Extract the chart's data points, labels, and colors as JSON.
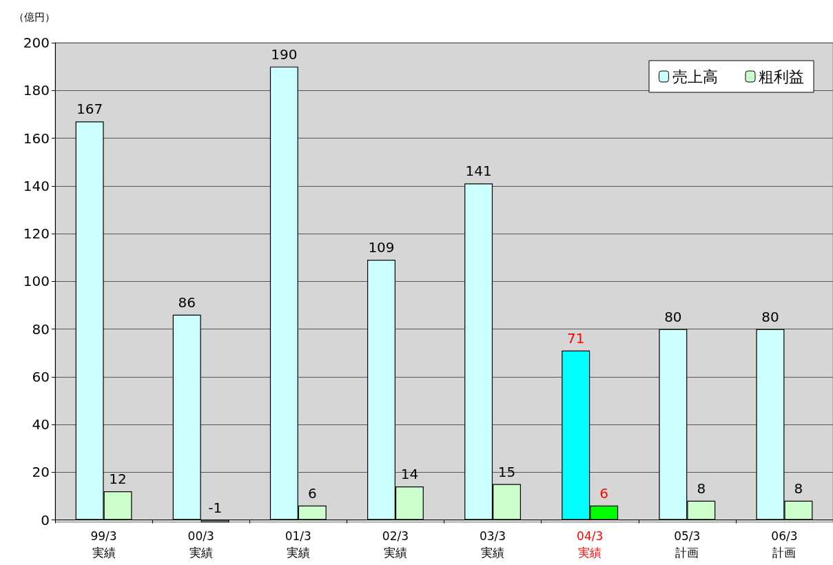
{
  "chart_data": {
    "type": "bar",
    "ylabel": "（億円）",
    "categories": [
      "99/3\n実績",
      "00/3\n実績",
      "01/3\n実績",
      "02/3\n実績",
      "03/3\n実績",
      "04/3\n実績",
      "05/3\n計画",
      "06/3\n計画"
    ],
    "series": [
      {
        "name": "売上高",
        "color": "#ccffff",
        "colors": [
          "#ccffff",
          "#ccffff",
          "#ccffff",
          "#ccffff",
          "#ccffff",
          "#00ffff",
          "#ccffff",
          "#ccffff"
        ],
        "values": [
          167,
          86,
          190,
          109,
          141,
          71,
          80,
          80
        ]
      },
      {
        "name": "粗利益",
        "color": "#ccffcc",
        "colors": [
          "#ccffcc",
          "#ccffcc",
          "#ccffcc",
          "#ccffcc",
          "#ccffcc",
          "#00ff00",
          "#ccffcc",
          "#ccffcc"
        ],
        "values": [
          12,
          -1,
          6,
          14,
          15,
          6,
          8,
          8
        ]
      }
    ],
    "ylim": [
      -1,
      200
    ],
    "yticks": [
      0,
      20,
      40,
      60,
      80,
      100,
      120,
      140,
      160,
      180,
      200
    ],
    "grid": "y",
    "legend": "top right",
    "data_labels": true
  }
}
